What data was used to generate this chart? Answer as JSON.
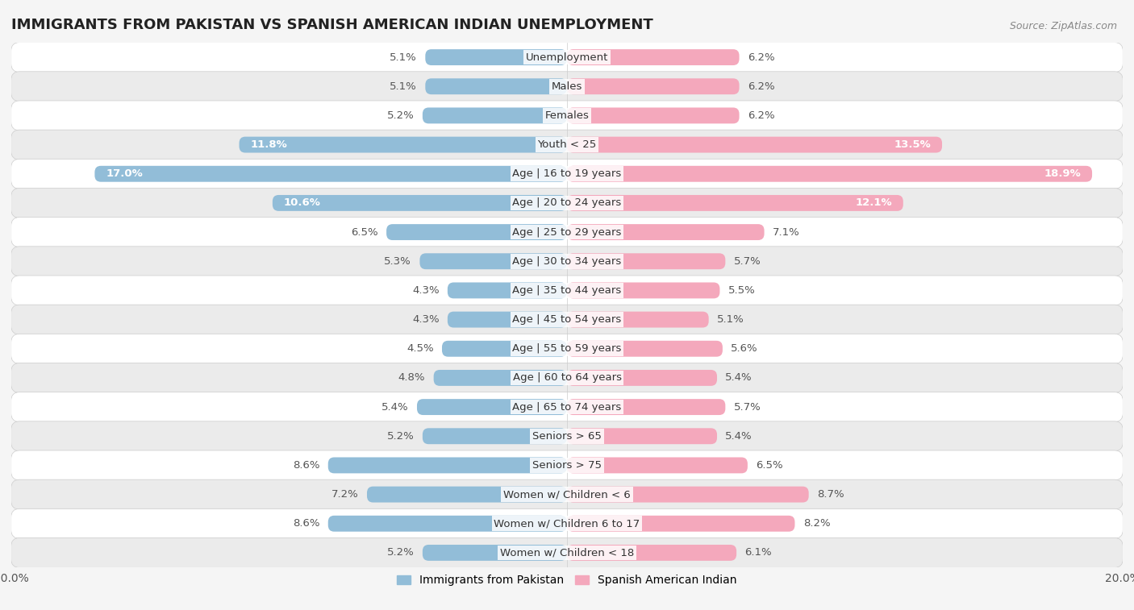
{
  "title": "IMMIGRANTS FROM PAKISTAN VS SPANISH AMERICAN INDIAN UNEMPLOYMENT",
  "source": "Source: ZipAtlas.com",
  "categories": [
    "Unemployment",
    "Males",
    "Females",
    "Youth < 25",
    "Age | 16 to 19 years",
    "Age | 20 to 24 years",
    "Age | 25 to 29 years",
    "Age | 30 to 34 years",
    "Age | 35 to 44 years",
    "Age | 45 to 54 years",
    "Age | 55 to 59 years",
    "Age | 60 to 64 years",
    "Age | 65 to 74 years",
    "Seniors > 65",
    "Seniors > 75",
    "Women w/ Children < 6",
    "Women w/ Children 6 to 17",
    "Women w/ Children < 18"
  ],
  "pakistan_values": [
    5.1,
    5.1,
    5.2,
    11.8,
    17.0,
    10.6,
    6.5,
    5.3,
    4.3,
    4.3,
    4.5,
    4.8,
    5.4,
    5.2,
    8.6,
    7.2,
    8.6,
    5.2
  ],
  "spanish_values": [
    6.2,
    6.2,
    6.2,
    13.5,
    18.9,
    12.1,
    7.1,
    5.7,
    5.5,
    5.1,
    5.6,
    5.4,
    5.7,
    5.4,
    6.5,
    8.7,
    8.2,
    6.1
  ],
  "pakistan_color": "#92bdd8",
  "pakistan_color_dark": "#5b9fc8",
  "spanish_color": "#f4a8bc",
  "spanish_color_dark": "#e8607a",
  "xlim": 20.0,
  "bar_height": 0.55,
  "background_color": "#f5f5f5",
  "row_color_even": "#ffffff",
  "row_color_odd": "#ebebeb",
  "label_fontsize": 9.5,
  "value_fontsize": 9.5,
  "title_fontsize": 13,
  "white_text_threshold": 10.0
}
